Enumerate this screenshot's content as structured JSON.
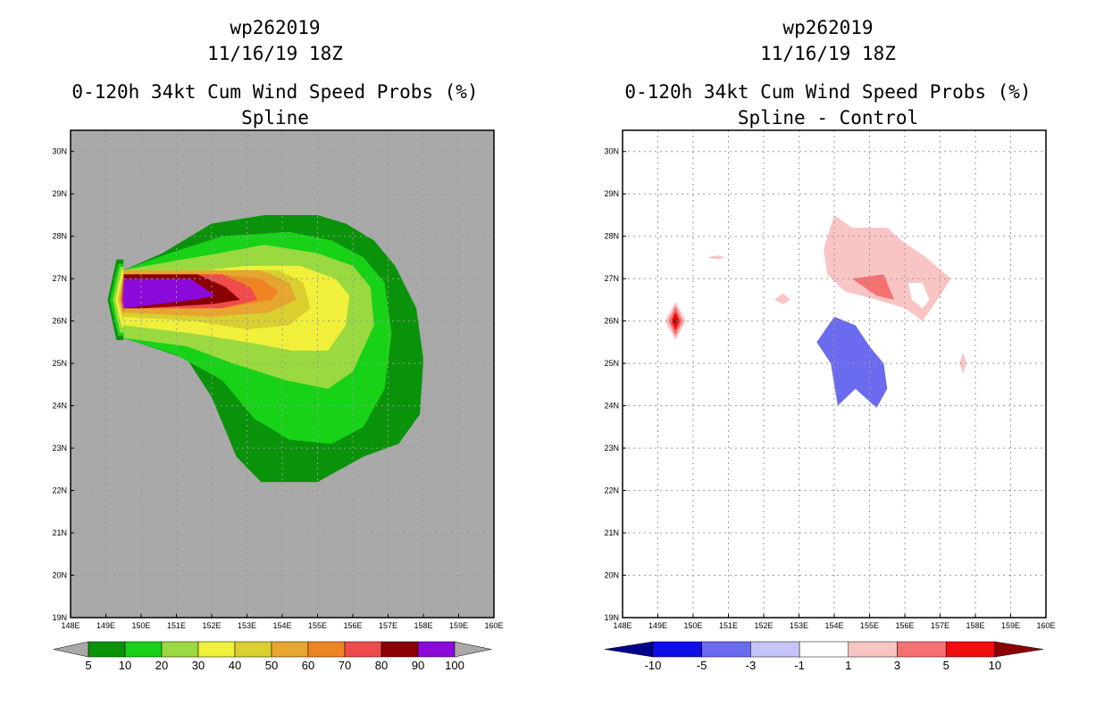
{
  "figure": {
    "colors": {
      "background": "#ffffff",
      "left_panel_background": "#a9a9a9",
      "grid": "#9a9a9a"
    },
    "left_legend": {
      "labels": [
        "5",
        "10",
        "20",
        "30",
        "40",
        "50",
        "60",
        "70",
        "80",
        "90",
        "100"
      ],
      "colors": [
        "#a9a9a9",
        "#0a930a",
        "#18d218",
        "#9ad93f",
        "#f0f03a",
        "#d9cf2f",
        "#e6a630",
        "#ef8422",
        "#f04b4b",
        "#8b0000",
        "#8c0ad9",
        "#a9a9a9"
      ]
    },
    "right_legend": {
      "labels": [
        "-10",
        "-5",
        "-3",
        "-1",
        "1",
        "3",
        "5",
        "10"
      ],
      "colors": [
        "#00008b",
        "#0f0fe6",
        "#6b6bef",
        "#c4c4f8",
        "#ffffff",
        "#f8c4c4",
        "#f57171",
        "#f00d0d",
        "#8b0000"
      ]
    }
  },
  "chart_data": [
    {
      "type": "filled_contour_map",
      "title_lines": [
        "wp262019",
        "11/16/19 18Z",
        "0-120h 34kt Cum Wind Speed Probs (%)",
        "Spline"
      ],
      "xlabel": "",
      "ylabel": "",
      "xlim": [
        148,
        160
      ],
      "ylim": [
        19,
        30.5
      ],
      "x_ticks": [
        "148E",
        "149E",
        "150E",
        "151E",
        "152E",
        "153E",
        "154E",
        "155E",
        "156E",
        "157E",
        "158E",
        "159E",
        "160E"
      ],
      "y_ticks": [
        "19N",
        "20N",
        "21N",
        "22N",
        "23N",
        "24N",
        "25N",
        "26N",
        "27N",
        "28N",
        "29N",
        "30N"
      ],
      "grid": true,
      "levels": [
        5,
        10,
        20,
        30,
        40,
        50,
        60,
        70,
        80,
        90,
        100
      ],
      "regions": [
        {
          "level": 5,
          "points": [
            [
              149.5,
              25.6
            ],
            [
              151.3,
              25.1
            ],
            [
              152.0,
              24.2
            ],
            [
              152.7,
              22.8
            ],
            [
              153.4,
              22.2
            ],
            [
              155.0,
              22.2
            ],
            [
              156.3,
              22.8
            ],
            [
              157.3,
              23.1
            ],
            [
              157.9,
              23.8
            ],
            [
              158.0,
              25.1
            ],
            [
              157.8,
              26.3
            ],
            [
              157.2,
              27.3
            ],
            [
              156.6,
              27.9
            ],
            [
              155.8,
              28.3
            ],
            [
              155.0,
              28.5
            ],
            [
              153.5,
              28.5
            ],
            [
              152.0,
              28.3
            ],
            [
              150.6,
              27.6
            ],
            [
              149.5,
              27.2
            ]
          ]
        },
        {
          "level": 10,
          "points": [
            [
              149.5,
              25.6
            ],
            [
              151.0,
              25.2
            ],
            [
              152.3,
              24.6
            ],
            [
              153.2,
              23.7
            ],
            [
              154.2,
              23.2
            ],
            [
              155.4,
              23.1
            ],
            [
              156.3,
              23.5
            ],
            [
              156.9,
              24.4
            ],
            [
              157.1,
              25.7
            ],
            [
              156.9,
              26.9
            ],
            [
              156.3,
              27.5
            ],
            [
              155.4,
              27.9
            ],
            [
              154.2,
              28.1
            ],
            [
              152.3,
              28.0
            ],
            [
              150.8,
              27.6
            ],
            [
              149.5,
              27.2
            ]
          ]
        },
        {
          "level": 20,
          "points": [
            [
              149.5,
              25.6
            ],
            [
              151.3,
              25.4
            ],
            [
              152.6,
              25.0
            ],
            [
              154.1,
              24.6
            ],
            [
              155.3,
              24.4
            ],
            [
              156.0,
              24.8
            ],
            [
              156.6,
              25.9
            ],
            [
              156.5,
              26.8
            ],
            [
              156.0,
              27.3
            ],
            [
              155.0,
              27.6
            ],
            [
              153.5,
              27.8
            ],
            [
              152.2,
              27.6
            ],
            [
              150.8,
              27.4
            ],
            [
              149.5,
              27.2
            ]
          ]
        },
        {
          "level": 30,
          "points": [
            [
              149.5,
              25.9
            ],
            [
              151.5,
              25.7
            ],
            [
              153.0,
              25.5
            ],
            [
              154.3,
              25.3
            ],
            [
              155.3,
              25.3
            ],
            [
              155.8,
              25.9
            ],
            [
              155.9,
              26.6
            ],
            [
              155.5,
              27.0
            ],
            [
              154.5,
              27.3
            ],
            [
              153.0,
              27.3
            ],
            [
              151.8,
              27.2
            ],
            [
              150.3,
              27.2
            ],
            [
              149.5,
              27.2
            ]
          ]
        },
        {
          "level": 40,
          "points": [
            [
              149.5,
              26.1
            ],
            [
              151.5,
              26.0
            ],
            [
              153.0,
              25.8
            ],
            [
              154.2,
              25.9
            ],
            [
              154.8,
              26.3
            ],
            [
              154.6,
              26.9
            ],
            [
              153.9,
              27.2
            ],
            [
              152.7,
              27.2
            ],
            [
              151.1,
              27.2
            ],
            [
              149.5,
              27.2
            ]
          ]
        },
        {
          "level": 50,
          "points": [
            [
              149.5,
              26.2
            ],
            [
              152.0,
              26.1
            ],
            [
              153.6,
              26.2
            ],
            [
              154.4,
              26.5
            ],
            [
              154.2,
              26.9
            ],
            [
              153.4,
              27.2
            ],
            [
              152.0,
              27.2
            ],
            [
              149.5,
              27.2
            ]
          ]
        },
        {
          "level": 60,
          "points": [
            [
              149.5,
              26.3
            ],
            [
              152.3,
              26.3
            ],
            [
              153.7,
              26.5
            ],
            [
              153.9,
              26.7
            ],
            [
              153.4,
              27.0
            ],
            [
              152.2,
              27.1
            ],
            [
              149.5,
              27.1
            ]
          ]
        },
        {
          "level": 70,
          "points": [
            [
              149.5,
              26.3
            ],
            [
              152.3,
              26.3
            ],
            [
              153.3,
              26.5
            ],
            [
              153.1,
              26.8
            ],
            [
              152.3,
              27.1
            ],
            [
              149.5,
              27.1
            ]
          ]
        },
        {
          "level": 80,
          "points": [
            [
              149.5,
              26.3
            ],
            [
              150.0,
              26.3
            ],
            [
              152.0,
              26.4
            ],
            [
              152.8,
              26.5
            ],
            [
              152.4,
              26.8
            ],
            [
              151.6,
              27.1
            ],
            [
              149.5,
              27.1
            ]
          ]
        },
        {
          "level": 90,
          "points": [
            [
              149.5,
              26.3
            ],
            [
              151.5,
              26.5
            ],
            [
              152.1,
              26.6
            ],
            [
              151.4,
              27.0
            ],
            [
              149.5,
              27.0
            ]
          ]
        }
      ],
      "edge_bands": [
        {
          "level": 5,
          "points": [
            [
              149.05,
              26.5
            ],
            [
              149.3,
              27.45
            ],
            [
              149.5,
              27.45
            ],
            [
              149.5,
              25.55
            ],
            [
              149.3,
              25.55
            ]
          ]
        },
        {
          "level": 10,
          "points": [
            [
              149.12,
              26.5
            ],
            [
              149.35,
              27.35
            ],
            [
              149.5,
              27.35
            ],
            [
              149.5,
              25.65
            ],
            [
              149.35,
              25.65
            ]
          ]
        },
        {
          "level": 20,
          "points": [
            [
              149.2,
              26.5
            ],
            [
              149.4,
              27.28
            ],
            [
              149.5,
              27.28
            ],
            [
              149.5,
              25.72
            ],
            [
              149.4,
              25.72
            ]
          ]
        },
        {
          "level": 30,
          "points": [
            [
              149.27,
              26.5
            ],
            [
              149.45,
              27.2
            ],
            [
              149.5,
              27.2
            ],
            [
              149.5,
              25.85
            ],
            [
              149.45,
              25.85
            ]
          ]
        },
        {
          "level": 40,
          "points": [
            [
              149.33,
              26.5
            ],
            [
              149.5,
              27.15
            ],
            [
              149.5,
              26.0
            ]
          ]
        },
        {
          "level": 50,
          "points": [
            [
              149.38,
              26.5
            ],
            [
              149.5,
              27.1
            ],
            [
              149.5,
              26.1
            ]
          ]
        },
        {
          "level": 70,
          "points": [
            [
              149.43,
              26.5
            ],
            [
              149.5,
              27.05
            ],
            [
              149.5,
              26.2
            ]
          ]
        },
        {
          "level": 90,
          "points": [
            [
              149.47,
              26.5
            ],
            [
              149.5,
              27.0
            ],
            [
              149.5,
              26.3
            ]
          ]
        }
      ]
    },
    {
      "type": "filled_contour_map",
      "title_lines": [
        "wp262019",
        "11/16/19 18Z",
        "0-120h 34kt Cum Wind Speed Probs (%)",
        "Spline - Control"
      ],
      "xlabel": "",
      "ylabel": "",
      "xlim": [
        148,
        160
      ],
      "ylim": [
        19,
        30.5
      ],
      "x_ticks": [
        "148E",
        "149E",
        "150E",
        "151E",
        "152E",
        "153E",
        "154E",
        "155E",
        "156E",
        "157E",
        "158E",
        "159E",
        "160E"
      ],
      "y_ticks": [
        "19N",
        "20N",
        "21N",
        "22N",
        "23N",
        "24N",
        "25N",
        "26N",
        "27N",
        "28N",
        "29N",
        "30N"
      ],
      "grid": true,
      "levels": [
        -10,
        -5,
        -3,
        -1,
        1,
        3,
        5,
        10
      ],
      "regions": [
        {
          "level": 1,
          "points": [
            [
              154.0,
              28.5
            ],
            [
              154.5,
              28.2
            ],
            [
              155.5,
              28.2
            ],
            [
              155.9,
              27.9
            ],
            [
              156.6,
              27.5
            ],
            [
              157.3,
              27.0
            ],
            [
              157.0,
              26.6
            ],
            [
              156.5,
              26.0
            ],
            [
              156.0,
              26.3
            ],
            [
              155.2,
              26.5
            ],
            [
              154.3,
              26.7
            ],
            [
              153.8,
              27.1
            ],
            [
              153.7,
              27.7
            ]
          ]
        },
        {
          "level": 1,
          "points": [
            [
              150.4,
              27.5
            ],
            [
              150.7,
              27.55
            ],
            [
              150.9,
              27.5
            ],
            [
              150.7,
              27.45
            ]
          ]
        },
        {
          "level": 1,
          "points": [
            [
              152.3,
              26.5
            ],
            [
              152.55,
              26.65
            ],
            [
              152.75,
              26.5
            ],
            [
              152.55,
              26.4
            ]
          ]
        },
        {
          "level": 1,
          "points": [
            [
              157.55,
              25.0
            ],
            [
              157.65,
              24.75
            ],
            [
              157.75,
              25.0
            ],
            [
              157.65,
              25.25
            ]
          ]
        },
        {
          "level": 1,
          "points": [
            [
              149.2,
              26.0
            ],
            [
              149.5,
              26.45
            ],
            [
              149.8,
              26.0
            ],
            [
              149.5,
              25.55
            ]
          ]
        },
        {
          "level": 3,
          "points": [
            [
              149.3,
              26.0
            ],
            [
              149.5,
              26.35
            ],
            [
              149.7,
              26.0
            ],
            [
              149.5,
              25.65
            ]
          ]
        },
        {
          "level": 3,
          "points": [
            [
              154.5,
              27.0
            ],
            [
              155.4,
              27.1
            ],
            [
              155.7,
              26.5
            ],
            [
              155.2,
              26.6
            ]
          ]
        },
        {
          "level": 5,
          "points": [
            [
              149.38,
              26.0
            ],
            [
              149.5,
              26.22
            ],
            [
              149.62,
              26.0
            ],
            [
              149.5,
              25.78
            ]
          ]
        },
        {
          "level": -3,
          "points": [
            [
              154.0,
              26.1
            ],
            [
              154.6,
              25.9
            ],
            [
              155.0,
              25.4
            ],
            [
              155.4,
              25.0
            ],
            [
              155.5,
              24.4
            ],
            [
              155.2,
              23.95
            ],
            [
              154.6,
              24.4
            ],
            [
              154.1,
              24.0
            ],
            [
              153.9,
              25.0
            ],
            [
              153.5,
              25.5
            ]
          ]
        }
      ],
      "holes": [
        {
          "points": [
            [
              156.1,
              26.9
            ],
            [
              156.5,
              26.9
            ],
            [
              156.7,
              26.5
            ],
            [
              156.5,
              26.3
            ],
            [
              156.2,
              26.5
            ]
          ]
        }
      ],
      "markers": [
        {
          "level": 10,
          "x": 149.5,
          "y": 26.0
        }
      ]
    }
  ]
}
